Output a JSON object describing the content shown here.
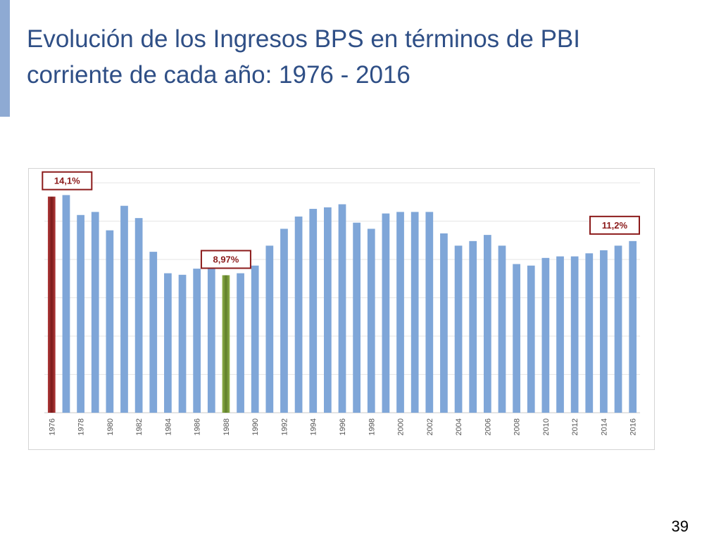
{
  "slide": {
    "title_line1": "Evolución de los Ingresos BPS en términos de PBI",
    "title_line2": "corriente de cada año: 1976 - 2016",
    "page_number": "39"
  },
  "colors": {
    "title": "#2f4f86",
    "accent_bar": "#8eaad3",
    "bar_default": "#7fa6d8",
    "bar_highlight_1976": "#7a1a1a",
    "bar_highlight_1988": "#5e7d2a",
    "callout_border": "#8b1a1a",
    "callout_fill": "#ffffff",
    "callout_text": "#8b1a1a",
    "gridline": "#e6e6e6"
  },
  "chart_data": {
    "type": "bar",
    "title": "",
    "xlabel": "",
    "ylabel": "",
    "ylim": [
      0,
      15
    ],
    "grid": true,
    "legend": "none",
    "categories": [
      "1976",
      "1977",
      "1978",
      "1979",
      "1980",
      "1981",
      "1982",
      "1983",
      "1984",
      "1985",
      "1986",
      "1987",
      "1988",
      "1989",
      "1990",
      "1991",
      "1992",
      "1993",
      "1994",
      "1995",
      "1996",
      "1997",
      "1998",
      "1999",
      "2000",
      "2001",
      "2002",
      "2003",
      "2004",
      "2005",
      "2006",
      "2007",
      "2008",
      "2009",
      "2010",
      "2011",
      "2012",
      "2013",
      "2014",
      "2015",
      "2016"
    ],
    "tick_labels": [
      "1976",
      "1978",
      "1980",
      "1982",
      "1984",
      "1986",
      "1988",
      "1990",
      "1992",
      "1994",
      "1996",
      "1998",
      "2000",
      "2002",
      "2004",
      "2006",
      "2008",
      "2010",
      "2012",
      "2014",
      "2016"
    ],
    "values": [
      14.1,
      14.2,
      12.9,
      13.1,
      11.9,
      13.5,
      12.7,
      10.5,
      9.1,
      9.0,
      9.4,
      9.5,
      8.97,
      9.1,
      9.6,
      10.9,
      12.0,
      12.8,
      13.3,
      13.4,
      13.6,
      12.4,
      12.0,
      13.0,
      13.1,
      13.1,
      13.1,
      11.7,
      10.9,
      11.2,
      11.6,
      10.9,
      9.7,
      9.6,
      10.1,
      10.2,
      10.2,
      10.4,
      10.6,
      10.9,
      11.2
    ],
    "highlights": [
      {
        "category": "1976",
        "label": "14,1%",
        "color_key": "bar_highlight_1976"
      },
      {
        "category": "1988",
        "label": "8,97%",
        "color_key": "bar_highlight_1988"
      },
      {
        "category": "2016",
        "label": "11,2%",
        "color_key": "bar_default"
      }
    ]
  }
}
